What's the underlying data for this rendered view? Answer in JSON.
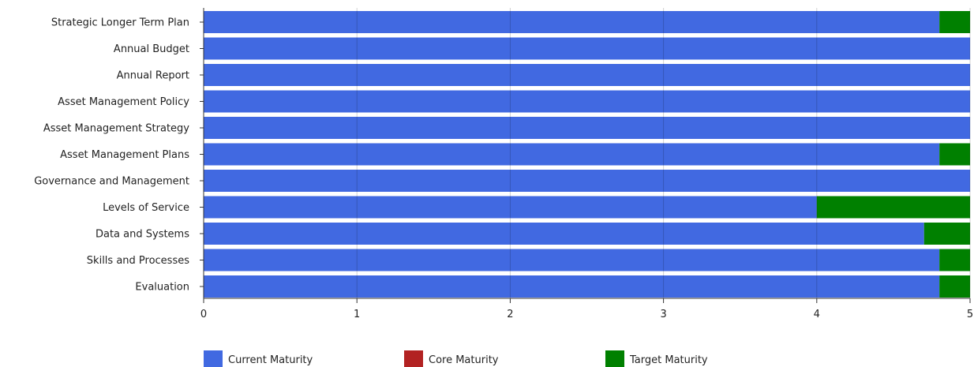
{
  "chart_data": {
    "type": "bar",
    "orientation": "horizontal",
    "stacked": true,
    "categories": [
      "Strategic Longer Term Plan",
      "Annual Budget",
      "Annual Report",
      "Asset Management Policy",
      "Asset Management Strategy",
      "Asset Management Plans",
      "Governance and Management",
      "Levels of Service",
      "Data and Systems",
      "Skills and Processes",
      "Evaluation"
    ],
    "series": [
      {
        "name": "Current Maturity",
        "color": "#4169e1",
        "values": [
          4.8,
          5,
          5,
          5,
          5,
          4.8,
          5,
          4.0,
          4.7,
          4.8,
          4.8
        ]
      },
      {
        "name": "Core Maturity",
        "color": "#b22222",
        "values": [
          0,
          0,
          0,
          0,
          0,
          0,
          0,
          0,
          0,
          0,
          0
        ]
      },
      {
        "name": "Target Maturity",
        "color": "#008000",
        "values": [
          0.2,
          0,
          0,
          0,
          0,
          0.2,
          0,
          1.0,
          0.3,
          0.2,
          0.2
        ]
      }
    ],
    "xlim": [
      0,
      5
    ],
    "xticks": [
      "0",
      "1",
      "2",
      "3",
      "4",
      "5"
    ],
    "grid": true,
    "legend": "bottom-left"
  }
}
